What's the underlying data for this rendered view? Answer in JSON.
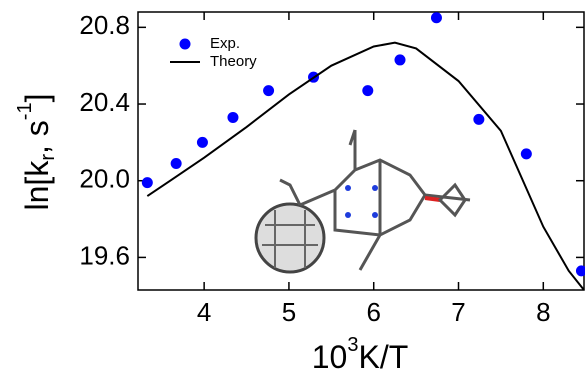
{
  "chart_data": {
    "type": "scatter",
    "xlabel": [
      "10",
      "3",
      "K/T"
    ],
    "ylabel": [
      "ln[k",
      "r",
      ", s",
      "-1",
      "]"
    ],
    "xlim": [
      3.22,
      8.48
    ],
    "ylim": [
      19.43,
      20.88
    ],
    "xticks": [
      4,
      5,
      6,
      7,
      8
    ],
    "yticks": [
      {
        "value": 19.6,
        "label": "19.6"
      },
      {
        "value": 20.0,
        "label": "20.0"
      },
      {
        "value": 20.4,
        "label": "20.4"
      },
      {
        "value": 20.8,
        "label": "20.8"
      }
    ],
    "legend": "upper left",
    "series": [
      {
        "name": "Exp.",
        "type": "scatter",
        "color": "#0000ff",
        "x": [
          3.33,
          3.67,
          3.98,
          4.34,
          4.76,
          5.29,
          5.93,
          6.31,
          6.74,
          7.24,
          7.8,
          8.45
        ],
        "values": [
          19.99,
          20.09,
          20.2,
          20.33,
          20.47,
          20.54,
          20.47,
          20.63,
          20.85,
          20.32,
          20.14,
          19.53
        ]
      },
      {
        "name": "Theory",
        "type": "line",
        "color": "#000000",
        "x": [
          3.33,
          3.6,
          4.0,
          4.5,
          5.0,
          5.5,
          6.0,
          6.25,
          6.5,
          7.0,
          7.5,
          8.0,
          8.3,
          8.48
        ],
        "values": [
          19.92,
          20.0,
          20.12,
          20.28,
          20.45,
          20.6,
          20.7,
          20.72,
          20.69,
          20.52,
          20.26,
          19.76,
          19.53,
          19.43
        ]
      }
    ]
  }
}
